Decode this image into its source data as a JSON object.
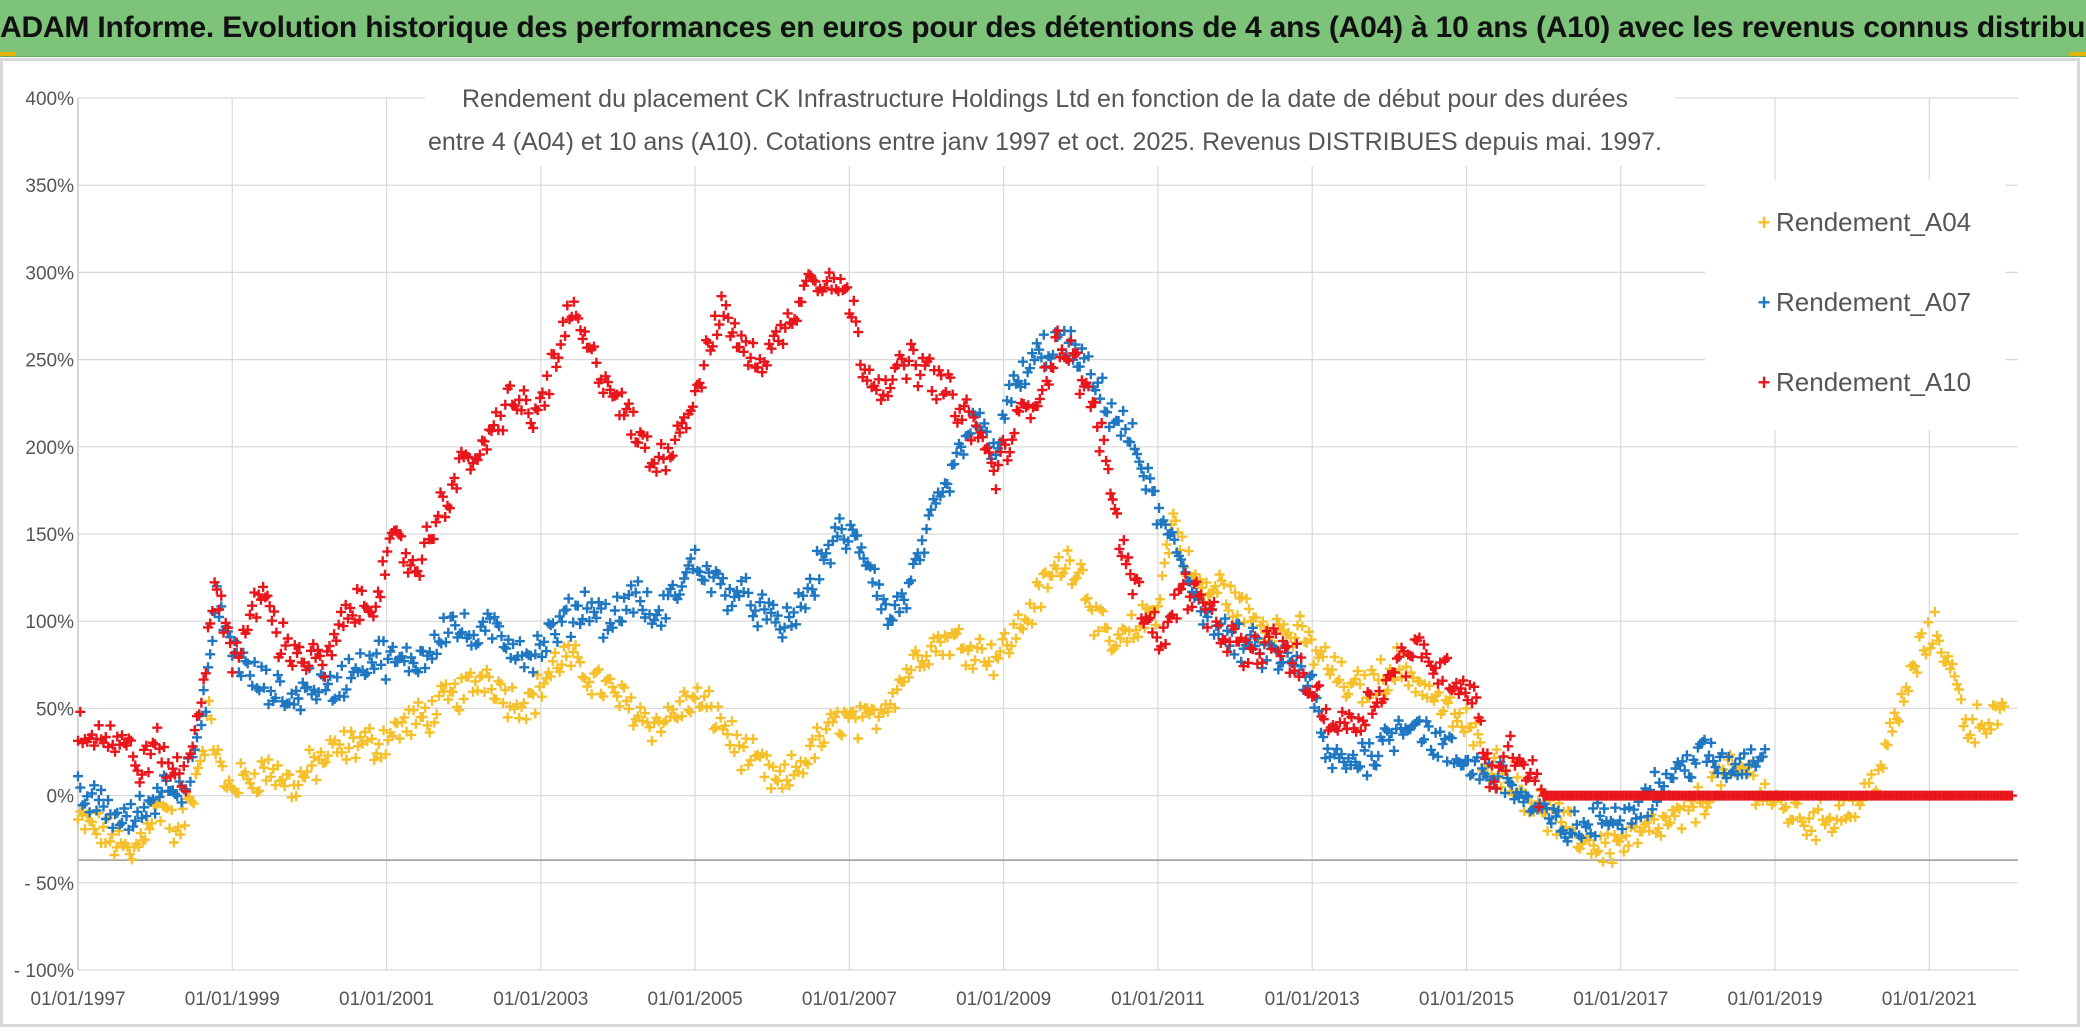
{
  "banner": {
    "title": "ADAM Informe. Evolution historique des performances en euros pour des détentions de 4 ans (A04) à 10 ans (A10) avec les revenus connus distribués"
  },
  "colors": {
    "banner_bg": "#7dc47a",
    "a04": "#f5c02a",
    "a07": "#1f77c2",
    "a10": "#e8161b"
  },
  "chart_data": {
    "type": "scatter",
    "title_lines": [
      "Rendement du placement CK Infrastructure Holdings Ltd en fonction de la date de début pour des durées",
      "entre 4 (A04) et 10 ans (A10). Cotations entre janv 1997 et oct. 2025. Revenus DISTRIBUES depuis mai. 1997."
    ],
    "y_ticks": [
      "400%",
      "350%",
      "300%",
      "250%",
      "200%",
      "150%",
      "100%",
      "50%",
      "0%",
      "- 50%",
      "- 100%"
    ],
    "y_tick_values": [
      400,
      350,
      300,
      250,
      200,
      150,
      100,
      50,
      0,
      -50,
      -100
    ],
    "ylim": [
      -100,
      400
    ],
    "x_ticks": [
      "01/01/1997",
      "01/01/1999",
      "01/01/2001",
      "01/01/2003",
      "01/01/2005",
      "01/01/2007",
      "01/01/2009",
      "01/01/2011",
      "01/01/2013",
      "01/01/2015",
      "01/01/2017",
      "01/01/2019",
      "01/01/2021"
    ],
    "x_tick_years": [
      1997,
      1999,
      2001,
      2003,
      2005,
      2007,
      2009,
      2011,
      2013,
      2015,
      2017,
      2019,
      2021
    ],
    "xlim": [
      1997.0,
      2022.15
    ],
    "legend_position": "right",
    "series": [
      {
        "name": "Rendement_A04",
        "color": "#f5c02a",
        "points": [
          [
            1997.0,
            -15
          ],
          [
            1997.3,
            -20
          ],
          [
            1997.7,
            -35
          ],
          [
            1997.9,
            -15
          ],
          [
            1998.1,
            -5
          ],
          [
            1998.3,
            -25
          ],
          [
            1998.5,
            5
          ],
          [
            1998.7,
            45
          ],
          [
            1998.9,
            5
          ],
          [
            1999.2,
            10
          ],
          [
            1999.5,
            15
          ],
          [
            1999.8,
            5
          ],
          [
            2000.0,
            15
          ],
          [
            2000.3,
            25
          ],
          [
            2000.6,
            30
          ],
          [
            2000.9,
            30
          ],
          [
            2001.2,
            40
          ],
          [
            2001.5,
            45
          ],
          [
            2001.8,
            55
          ],
          [
            2002.0,
            60
          ],
          [
            2002.3,
            70
          ],
          [
            2002.6,
            55
          ],
          [
            2002.9,
            55
          ],
          [
            2003.1,
            70
          ],
          [
            2003.3,
            80
          ],
          [
            2003.6,
            70
          ],
          [
            2003.9,
            60
          ],
          [
            2004.2,
            50
          ],
          [
            2004.5,
            40
          ],
          [
            2004.8,
            50
          ],
          [
            2005.0,
            55
          ],
          [
            2005.3,
            45
          ],
          [
            2005.6,
            25
          ],
          [
            2005.9,
            15
          ],
          [
            2006.1,
            5
          ],
          [
            2006.4,
            20
          ],
          [
            2006.7,
            35
          ],
          [
            2006.9,
            45
          ],
          [
            2007.2,
            40
          ],
          [
            2007.5,
            55
          ],
          [
            2007.8,
            75
          ],
          [
            2008.0,
            85
          ],
          [
            2008.3,
            90
          ],
          [
            2008.6,
            85
          ],
          [
            2008.9,
            80
          ],
          [
            2009.1,
            90
          ],
          [
            2009.4,
            110
          ],
          [
            2009.6,
            125
          ],
          [
            2009.8,
            135
          ],
          [
            2010.0,
            130
          ],
          [
            2010.2,
            100
          ],
          [
            2010.4,
            85
          ],
          [
            2010.6,
            90
          ],
          [
            2010.8,
            100
          ],
          [
            2011.0,
            110
          ],
          [
            2011.2,
            160
          ],
          [
            2011.4,
            130
          ],
          [
            2011.6,
            115
          ],
          [
            2011.8,
            120
          ],
          [
            2012.0,
            110
          ],
          [
            2012.3,
            100
          ],
          [
            2012.6,
            95
          ],
          [
            2012.9,
            90
          ],
          [
            2013.2,
            75
          ],
          [
            2013.5,
            60
          ],
          [
            2013.8,
            65
          ],
          [
            2014.1,
            75
          ],
          [
            2014.4,
            65
          ],
          [
            2014.7,
            50
          ],
          [
            2015.0,
            40
          ],
          [
            2015.3,
            20
          ],
          [
            2015.6,
            10
          ],
          [
            2015.9,
            -5
          ],
          [
            2016.2,
            -15
          ],
          [
            2016.5,
            -25
          ],
          [
            2016.8,
            -30
          ],
          [
            2017.1,
            -25
          ],
          [
            2017.4,
            -20
          ],
          [
            2017.7,
            -15
          ],
          [
            2018.0,
            -5
          ],
          [
            2018.3,
            10
          ],
          [
            2018.6,
            15
          ],
          [
            2018.9,
            0
          ],
          [
            2019.2,
            -10
          ],
          [
            2019.5,
            -15
          ],
          [
            2019.8,
            -10
          ],
          [
            2020.1,
            -5
          ],
          [
            2020.4,
            20
          ],
          [
            2020.7,
            60
          ],
          [
            2020.9,
            85
          ],
          [
            2021.1,
            95
          ],
          [
            2021.3,
            70
          ],
          [
            2021.5,
            40
          ],
          [
            2021.8,
            45
          ],
          [
            2022.0,
            45
          ]
        ]
      },
      {
        "name": "Rendement_A07",
        "color": "#1f77c2",
        "points": [
          [
            1997.0,
            0
          ],
          [
            1997.3,
            -5
          ],
          [
            1997.6,
            -15
          ],
          [
            1997.8,
            -10
          ],
          [
            1998.0,
            0
          ],
          [
            1998.2,
            10
          ],
          [
            1998.4,
            5
          ],
          [
            1998.6,
            40
          ],
          [
            1998.8,
            110
          ],
          [
            1999.0,
            85
          ],
          [
            1999.2,
            70
          ],
          [
            1999.5,
            60
          ],
          [
            1999.8,
            55
          ],
          [
            2000.0,
            65
          ],
          [
            2000.3,
            60
          ],
          [
            2000.6,
            75
          ],
          [
            2000.9,
            80
          ],
          [
            2001.2,
            75
          ],
          [
            2001.5,
            80
          ],
          [
            2001.8,
            100
          ],
          [
            2002.1,
            90
          ],
          [
            2002.4,
            95
          ],
          [
            2002.7,
            85
          ],
          [
            2002.9,
            80
          ],
          [
            2003.1,
            90
          ],
          [
            2003.3,
            100
          ],
          [
            2003.6,
            110
          ],
          [
            2003.9,
            100
          ],
          [
            2004.2,
            115
          ],
          [
            2004.5,
            100
          ],
          [
            2004.8,
            120
          ],
          [
            2005.0,
            135
          ],
          [
            2005.3,
            120
          ],
          [
            2005.6,
            115
          ],
          [
            2005.9,
            105
          ],
          [
            2006.1,
            95
          ],
          [
            2006.4,
            110
          ],
          [
            2006.7,
            140
          ],
          [
            2006.9,
            150
          ],
          [
            2007.1,
            145
          ],
          [
            2007.3,
            130
          ],
          [
            2007.5,
            100
          ],
          [
            2007.8,
            120
          ],
          [
            2008.0,
            150
          ],
          [
            2008.3,
            180
          ],
          [
            2008.6,
            215
          ],
          [
            2008.9,
            200
          ],
          [
            2009.1,
            230
          ],
          [
            2009.4,
            250
          ],
          [
            2009.7,
            260
          ],
          [
            2009.9,
            255
          ],
          [
            2010.1,
            240
          ],
          [
            2010.4,
            220
          ],
          [
            2010.7,
            200
          ],
          [
            2010.9,
            175
          ],
          [
            2011.1,
            150
          ],
          [
            2011.3,
            135
          ],
          [
            2011.5,
            115
          ],
          [
            2011.7,
            100
          ],
          [
            2011.9,
            90
          ],
          [
            2012.2,
            85
          ],
          [
            2012.5,
            80
          ],
          [
            2012.8,
            75
          ],
          [
            2013.0,
            60
          ],
          [
            2013.2,
            20
          ],
          [
            2013.5,
            20
          ],
          [
            2013.8,
            25
          ],
          [
            2014.0,
            35
          ],
          [
            2014.3,
            45
          ],
          [
            2014.6,
            30
          ],
          [
            2014.9,
            20
          ],
          [
            2015.2,
            15
          ],
          [
            2015.5,
            10
          ],
          [
            2015.8,
            -5
          ],
          [
            2016.1,
            -15
          ],
          [
            2016.4,
            -20
          ],
          [
            2016.7,
            -15
          ],
          [
            2016.9,
            -10
          ],
          [
            2017.2,
            -5
          ],
          [
            2017.5,
            5
          ],
          [
            2017.8,
            15
          ],
          [
            2018.0,
            25
          ],
          [
            2018.2,
            20
          ],
          [
            2018.4,
            15
          ],
          [
            2018.6,
            20
          ],
          [
            2018.9,
            25
          ]
        ]
      },
      {
        "name": "Rendement_A10",
        "color": "#e8161b",
        "points": [
          [
            1997.0,
            40
          ],
          [
            1997.3,
            35
          ],
          [
            1997.6,
            30
          ],
          [
            1997.8,
            15
          ],
          [
            1998.0,
            30
          ],
          [
            1998.2,
            15
          ],
          [
            1998.4,
            10
          ],
          [
            1998.6,
            60
          ],
          [
            1998.8,
            120
          ],
          [
            1999.0,
            80
          ],
          [
            1999.2,
            95
          ],
          [
            1999.4,
            120
          ],
          [
            1999.6,
            90
          ],
          [
            1999.9,
            80
          ],
          [
            2000.2,
            75
          ],
          [
            2000.5,
            105
          ],
          [
            2000.8,
            110
          ],
          [
            2001.1,
            145
          ],
          [
            2001.4,
            130
          ],
          [
            2001.7,
            165
          ],
          [
            2002.0,
            190
          ],
          [
            2002.3,
            200
          ],
          [
            2002.6,
            230
          ],
          [
            2002.9,
            215
          ],
          [
            2003.2,
            250
          ],
          [
            2003.4,
            280
          ],
          [
            2003.6,
            255
          ],
          [
            2003.9,
            235
          ],
          [
            2004.2,
            210
          ],
          [
            2004.5,
            190
          ],
          [
            2004.8,
            210
          ],
          [
            2005.0,
            230
          ],
          [
            2005.2,
            260
          ],
          [
            2005.4,
            280
          ],
          [
            2005.6,
            255
          ],
          [
            2005.9,
            250
          ],
          [
            2006.2,
            270
          ],
          [
            2006.5,
            300
          ],
          [
            2006.8,
            295
          ],
          [
            2007.0,
            285
          ],
          [
            2007.2,
            245
          ],
          [
            2007.5,
            235
          ],
          [
            2007.8,
            250
          ],
          [
            2008.1,
            240
          ],
          [
            2008.4,
            225
          ],
          [
            2008.7,
            205
          ],
          [
            2008.9,
            185
          ],
          [
            2009.2,
            215
          ],
          [
            2009.5,
            235
          ],
          [
            2009.7,
            260
          ],
          [
            2009.9,
            250
          ],
          [
            2010.1,
            230
          ],
          [
            2010.3,
            200
          ],
          [
            2010.5,
            150
          ],
          [
            2010.7,
            120
          ],
          [
            2010.9,
            100
          ],
          [
            2011.1,
            90
          ],
          [
            2011.3,
            120
          ],
          [
            2011.5,
            115
          ],
          [
            2011.7,
            100
          ],
          [
            2011.9,
            90
          ],
          [
            2012.2,
            80
          ],
          [
            2012.5,
            90
          ],
          [
            2012.8,
            75
          ],
          [
            2013.0,
            60
          ],
          [
            2013.3,
            40
          ],
          [
            2013.6,
            45
          ],
          [
            2013.9,
            60
          ],
          [
            2014.1,
            75
          ],
          [
            2014.3,
            85
          ],
          [
            2014.6,
            75
          ],
          [
            2014.9,
            65
          ],
          [
            2015.1,
            60
          ],
          [
            2015.3,
            10
          ],
          [
            2015.6,
            25
          ],
          [
            2015.8,
            15
          ],
          [
            2016.0,
            0
          ],
          [
            2016.5,
            0
          ],
          [
            2017.0,
            0
          ],
          [
            2017.5,
            0
          ],
          [
            2018.0,
            0
          ],
          [
            2018.5,
            0
          ],
          [
            2019.0,
            0
          ],
          [
            2019.5,
            0
          ],
          [
            2020.0,
            0
          ],
          [
            2020.5,
            0
          ],
          [
            2021.0,
            0
          ],
          [
            2021.5,
            0
          ],
          [
            2022.1,
            0
          ]
        ]
      }
    ]
  }
}
